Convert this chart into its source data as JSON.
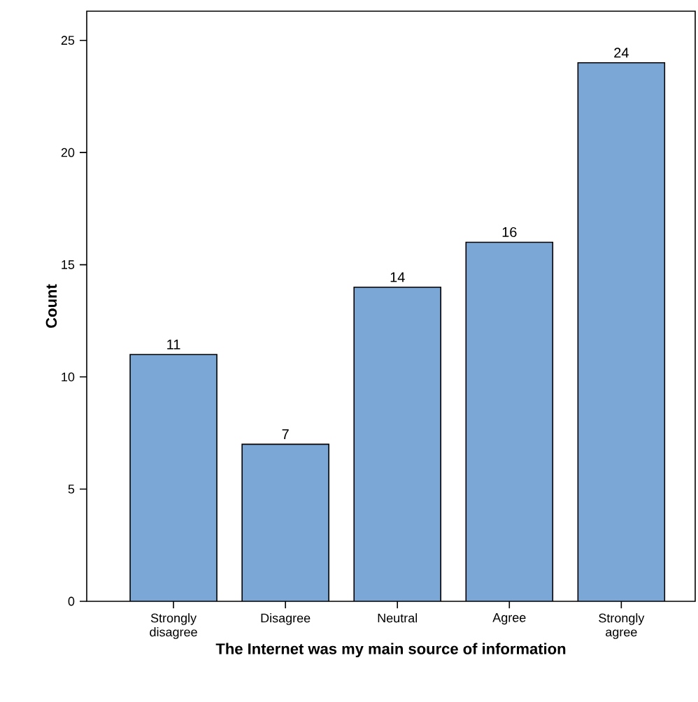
{
  "chart_data": {
    "type": "bar",
    "xlabel": "The Internet was my main source of information",
    "ylabel": "Count",
    "categories": [
      "Strongly disagree",
      "Disagree",
      "Neutral",
      "Agree",
      "Strongly agree"
    ],
    "values": [
      11,
      7,
      14,
      16,
      24
    ],
    "color": "#7ba7d6",
    "ylim": [
      0,
      26.3
    ],
    "yticks": [
      0,
      5,
      10,
      15,
      20,
      25
    ],
    "grid": false,
    "data_labels": true
  }
}
